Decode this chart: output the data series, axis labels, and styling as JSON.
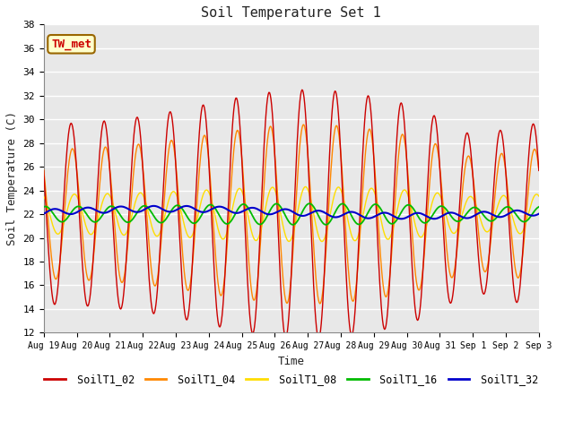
{
  "title": "Soil Temperature Set 1",
  "xlabel": "Time",
  "ylabel": "Soil Temperature (C)",
  "ylim": [
    12,
    38
  ],
  "colors": {
    "SoilT1_02": "#cc0000",
    "SoilT1_04": "#ff8800",
    "SoilT1_08": "#ffdd00",
    "SoilT1_16": "#00bb00",
    "SoilT1_32": "#0000cc"
  },
  "legend_labels": [
    "SoilT1_02",
    "SoilT1_04",
    "SoilT1_08",
    "SoilT1_16",
    "SoilT1_32"
  ],
  "bg_color": "#ffffff",
  "plot_bg_color": "#e8e8e8",
  "grid_color": "#ffffff",
  "annotation_text": "TW_met",
  "annotation_bg": "#ffffcc",
  "annotation_border": "#996600",
  "yticks": [
    12,
    14,
    16,
    18,
    20,
    22,
    24,
    26,
    28,
    30,
    32,
    34,
    36,
    38
  ],
  "x_tick_labels": [
    "Aug 19",
    "Aug 20",
    "Aug 21",
    "Aug 22",
    "Aug 23",
    "Aug 24",
    "Aug 25",
    "Aug 26",
    "Aug 27",
    "Aug 28",
    "Aug 29",
    "Aug 30",
    "Aug 31",
    "Sep 1",
    "Sep 2",
    "Sep 3"
  ]
}
